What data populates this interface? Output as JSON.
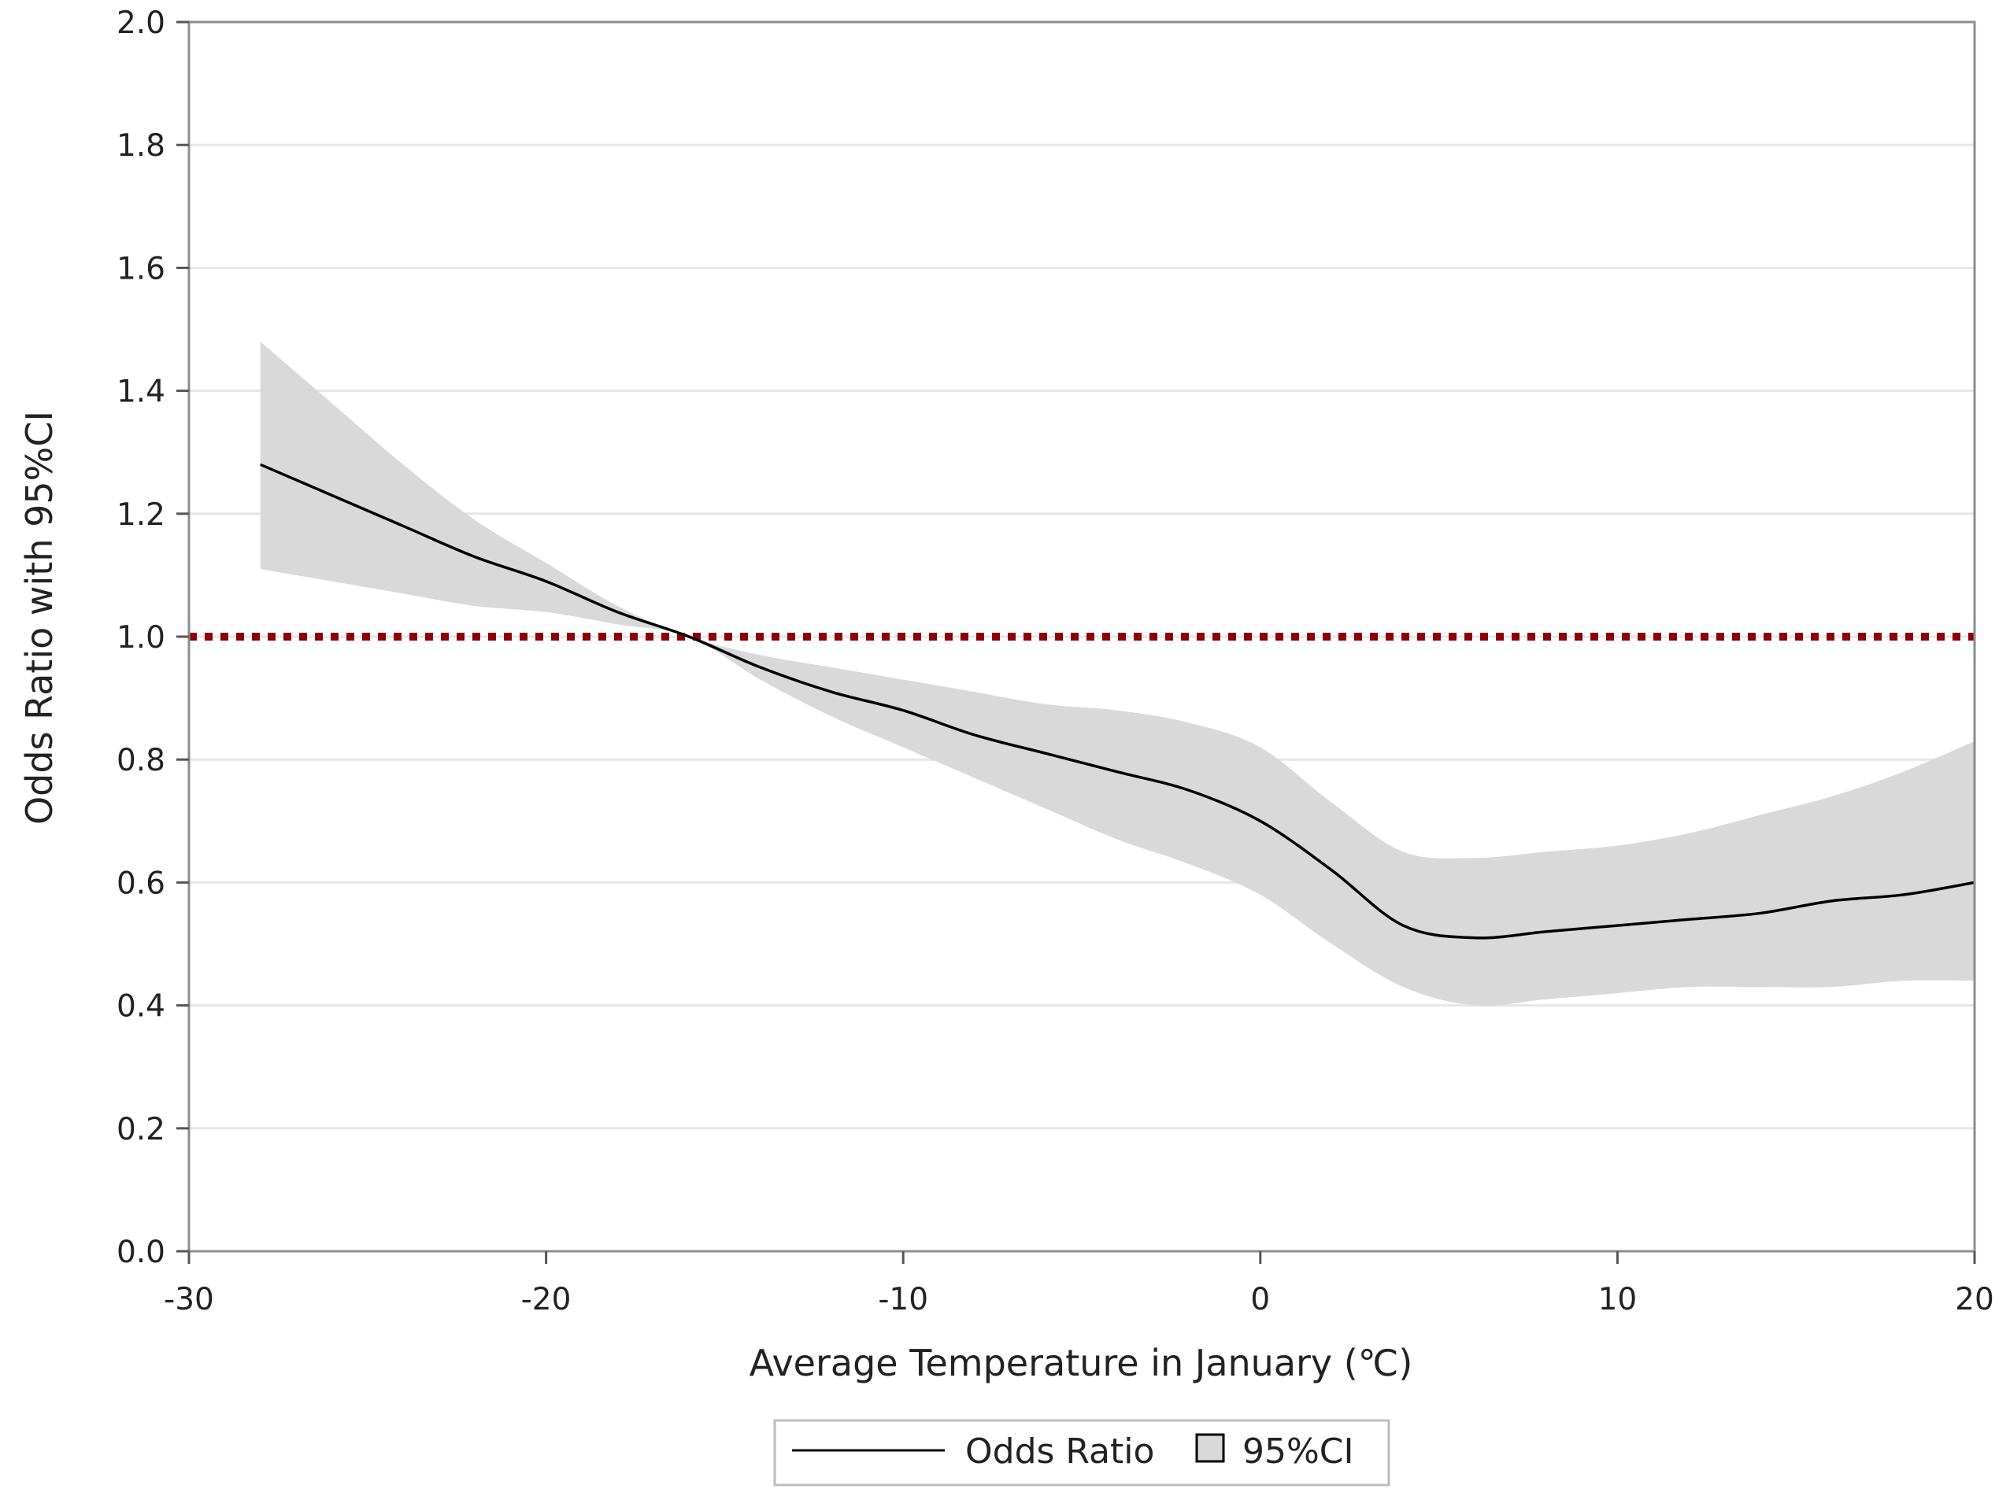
{
  "chart_data": {
    "type": "line",
    "title": "",
    "xlabel": "Average Temperature in January (℃)",
    "ylabel": "Odds Ratio with 95%CI",
    "xlim": [
      -30,
      20
    ],
    "ylim": [
      0.0,
      2.0
    ],
    "x_ticks": [
      -30,
      -20,
      -10,
      0,
      10,
      20
    ],
    "x_tick_labels": [
      "-30",
      "-20",
      "-10",
      "0",
      "10",
      "20"
    ],
    "y_ticks": [
      0.0,
      0.2,
      0.4,
      0.6,
      0.8,
      1.0,
      1.2,
      1.4,
      1.6,
      1.8,
      2.0
    ],
    "y_tick_labels": [
      "0.0",
      "0.2",
      "0.4",
      "0.6",
      "0.8",
      "1.0",
      "1.2",
      "1.4",
      "1.6",
      "1.8",
      "2.0"
    ],
    "grid": true,
    "reference_line": {
      "y": 1.0,
      "style": "dotted",
      "color": "#8b0000"
    },
    "series": [
      {
        "name": "Odds Ratio",
        "type": "line",
        "color": "#000000",
        "x": [
          -28,
          -26,
          -24,
          -22,
          -20,
          -18,
          -16,
          -14,
          -12,
          -10,
          -8,
          -6,
          -4,
          -2,
          0,
          2,
          4,
          6,
          8,
          10,
          12,
          14,
          16,
          18,
          20
        ],
        "y": [
          1.28,
          1.23,
          1.18,
          1.13,
          1.09,
          1.04,
          1.0,
          0.95,
          0.91,
          0.88,
          0.84,
          0.81,
          0.78,
          0.75,
          0.7,
          0.62,
          0.53,
          0.51,
          0.52,
          0.53,
          0.54,
          0.55,
          0.57,
          0.58,
          0.6
        ]
      },
      {
        "name": "95%CI",
        "type": "band",
        "color": "#d9d9d9",
        "x": [
          -28,
          -26,
          -24,
          -22,
          -20,
          -18,
          -16,
          -14,
          -12,
          -10,
          -8,
          -6,
          -4,
          -2,
          0,
          2,
          4,
          6,
          8,
          10,
          12,
          14,
          16,
          18,
          20
        ],
        "lower": [
          1.11,
          1.09,
          1.07,
          1.05,
          1.04,
          1.02,
          1.0,
          0.93,
          0.87,
          0.82,
          0.77,
          0.72,
          0.67,
          0.63,
          0.58,
          0.5,
          0.43,
          0.4,
          0.41,
          0.42,
          0.43,
          0.43,
          0.43,
          0.44,
          0.44
        ],
        "upper": [
          1.48,
          1.38,
          1.28,
          1.19,
          1.12,
          1.05,
          1.0,
          0.97,
          0.95,
          0.93,
          0.91,
          0.89,
          0.88,
          0.86,
          0.82,
          0.73,
          0.65,
          0.64,
          0.65,
          0.66,
          0.68,
          0.71,
          0.74,
          0.78,
          0.83
        ]
      }
    ],
    "legend": {
      "position": "bottom-center",
      "entries": [
        "Odds Ratio",
        "95%CI"
      ]
    }
  }
}
